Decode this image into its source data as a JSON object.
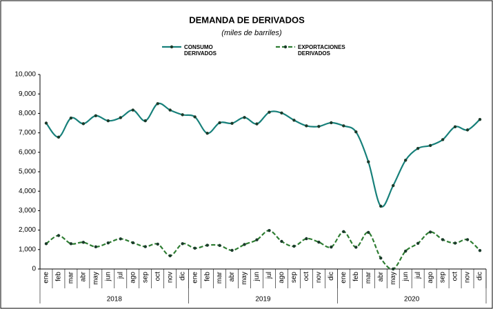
{
  "chart_data": {
    "type": "line",
    "title": "DEMANDA DE DERIVADOS",
    "subtitle": "(miles de barriles)",
    "categories": [
      "ene",
      "feb",
      "mar",
      "abr",
      "may",
      "jun",
      "jul",
      "ago",
      "sep",
      "oct",
      "nov",
      "dic",
      "ene",
      "feb",
      "mar",
      "abr",
      "may",
      "jun",
      "jul",
      "ago",
      "sep",
      "oct",
      "nov",
      "dic",
      "ene",
      "feb",
      "mar",
      "abr",
      "may",
      "jun",
      "jul",
      "ago",
      "sep",
      "oct",
      "nov",
      "dic"
    ],
    "year_labels": [
      "2018",
      "2019",
      "2020"
    ],
    "series": [
      {
        "name": "CONSUMO DERIVADOS",
        "color": "#17807a",
        "values": [
          7500,
          6780,
          7760,
          7470,
          7880,
          7620,
          7780,
          8170,
          7620,
          8500,
          8170,
          7930,
          7820,
          6980,
          7520,
          7490,
          7790,
          7460,
          8060,
          8020,
          7650,
          7360,
          7330,
          7520,
          7360,
          7050,
          5510,
          3230,
          4290,
          5590,
          6200,
          6350,
          6650,
          7310,
          7150,
          7690
        ]
      },
      {
        "name": "EXPORTACIONES DERIVADOS",
        "color": "#2e7d32",
        "dashed": true,
        "values": [
          1300,
          1720,
          1300,
          1370,
          1140,
          1340,
          1550,
          1350,
          1150,
          1280,
          680,
          1300,
          1070,
          1220,
          1210,
          960,
          1260,
          1500,
          1980,
          1420,
          1170,
          1560,
          1380,
          1130,
          1920,
          1120,
          1880,
          560,
          0,
          920,
          1320,
          1900,
          1510,
          1330,
          1510,
          950
        ]
      }
    ],
    "ylim": [
      0,
      10000
    ],
    "yticks": [
      0,
      {
        "value": 1000,
        "label": "1,000"
      },
      {
        "value": 2000,
        "label": "2,000"
      },
      {
        "value": 3000,
        "label": "3,000"
      },
      {
        "value": 4000,
        "label": "4,000"
      },
      {
        "value": 5000,
        "label": "5,000"
      },
      {
        "value": 6000,
        "label": "6,000"
      },
      {
        "value": 7000,
        "label": "7,000"
      },
      {
        "value": 8000,
        "label": "8,000"
      },
      {
        "value": 9000,
        "label": "9,000"
      },
      {
        "value": 10000,
        "label": "10,000"
      }
    ],
    "grid": false
  }
}
